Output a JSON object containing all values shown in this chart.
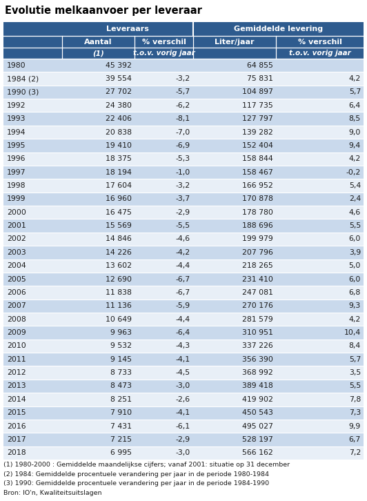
{
  "title": "Evolutie melkaanvoer per leveraar",
  "rows": [
    [
      "1980",
      "45 392",
      "",
      "64 855",
      ""
    ],
    [
      "1984 (2)",
      "39 554",
      "-3,2",
      "75 831",
      "4,2"
    ],
    [
      "1990 (3)",
      "27 702",
      "-5,7",
      "104 897",
      "5,7"
    ],
    [
      "1992",
      "24 380",
      "-6,2",
      "117 735",
      "6,4"
    ],
    [
      "1993",
      "22 406",
      "-8,1",
      "127 797",
      "8,5"
    ],
    [
      "1994",
      "20 838",
      "-7,0",
      "139 282",
      "9,0"
    ],
    [
      "1995",
      "19 410",
      "-6,9",
      "152 404",
      "9,4"
    ],
    [
      "1996",
      "18 375",
      "-5,3",
      "158 844",
      "4,2"
    ],
    [
      "1997",
      "18 194",
      "-1,0",
      "158 467",
      "-0,2"
    ],
    [
      "1998",
      "17 604",
      "-3,2",
      "166 952",
      "5,4"
    ],
    [
      "1999",
      "16 960",
      "-3,7",
      "170 878",
      "2,4"
    ],
    [
      "2000",
      "16 475",
      "-2,9",
      "178 780",
      "4,6"
    ],
    [
      "2001",
      "15 569",
      "-5,5",
      "188 696",
      "5,5"
    ],
    [
      "2002",
      "14 846",
      "-4,6",
      "199 979",
      "6,0"
    ],
    [
      "2003",
      "14 226",
      "-4,2",
      "207 796",
      "3,9"
    ],
    [
      "2004",
      "13 602",
      "-4,4",
      "218 265",
      "5,0"
    ],
    [
      "2005",
      "12 690",
      "-6,7",
      "231 410",
      "6,0"
    ],
    [
      "2006",
      "11 838",
      "-6,7",
      "247 081",
      "6,8"
    ],
    [
      "2007",
      "11 136",
      "-5,9",
      "270 176",
      "9,3"
    ],
    [
      "2008",
      "10 649",
      "-4,4",
      "281 579",
      "4,2"
    ],
    [
      "2009",
      "9 963",
      "-6,4",
      "310 951",
      "10,4"
    ],
    [
      "2010",
      "9 532",
      "-4,3",
      "337 226",
      "8,4"
    ],
    [
      "2011",
      "9 145",
      "-4,1",
      "356 390",
      "5,7"
    ],
    [
      "2012",
      "8 733",
      "-4,5",
      "368 992",
      "3,5"
    ],
    [
      "2013",
      "8 473",
      "-3,0",
      "389 418",
      "5,5"
    ],
    [
      "2014",
      "8 251",
      "-2,6",
      "419 902",
      "7,8"
    ],
    [
      "2015",
      "7 910",
      "-4,1",
      "450 543",
      "7,3"
    ],
    [
      "2016",
      "7 431",
      "-6,1",
      "495 027",
      "9,9"
    ],
    [
      "2017",
      "7 215",
      "-2,9",
      "528 197",
      "6,7"
    ],
    [
      "2018",
      "6 995",
      "-3,0",
      "566 162",
      "7,2"
    ]
  ],
  "footnotes": [
    "(1) 1980-2000 : Gemiddelde maandelijkse cijfers; vanaf 2001: situatie op 31 december",
    "(2) 1984: Gemiddelde procentuele verandering per jaar in de periode 1980-1984",
    "(3) 1990: Gemiddelde procentuele verandering per jaar in de periode 1984-1990",
    "Bron: IO'n, Kwaliteitsuitslagen"
  ],
  "header_bg": "#2E5B8E",
  "header_text": "#FFFFFF",
  "row_bg_even": "#C9D9EC",
  "row_bg_odd": "#E8EFF7",
  "text_color": "#1a1a1a",
  "title_color": "#000000",
  "footnote_color": "#1a1a1a",
  "title_fontsize": 10.5,
  "header_fontsize": 8.0,
  "data_fontsize": 7.8,
  "footnote_fontsize": 6.8
}
